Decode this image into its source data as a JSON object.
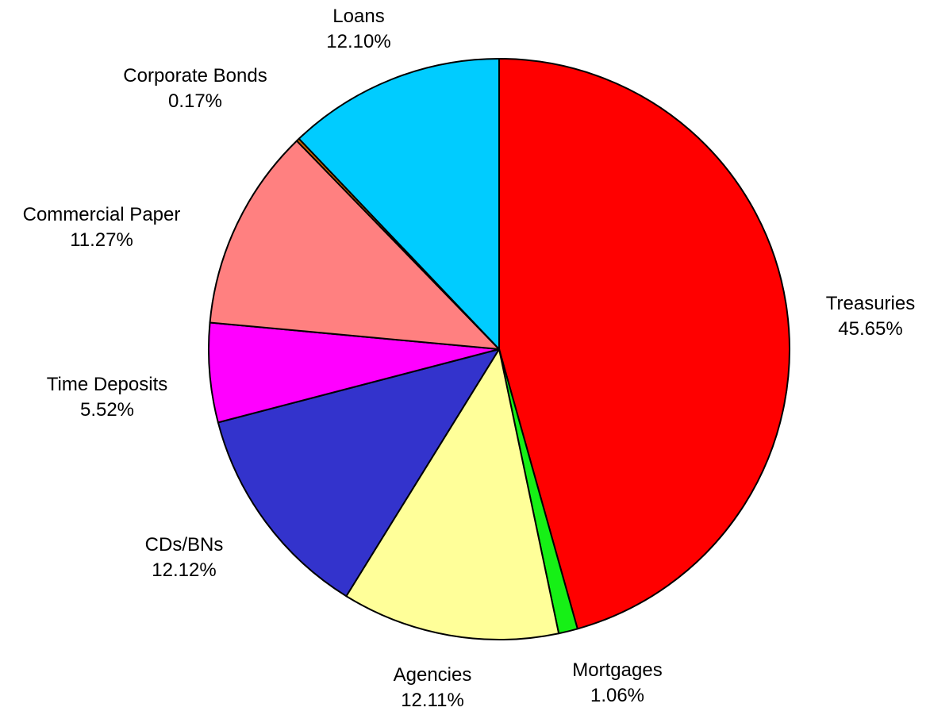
{
  "chart_data": {
    "type": "pie",
    "slices": [
      {
        "label": "Treasuries",
        "percent_label": "45.65%",
        "value": 45.65,
        "color": "#ff0000"
      },
      {
        "label": "Mortgages",
        "percent_label": "1.06%",
        "value": 1.06,
        "color": "#16f016"
      },
      {
        "label": "Agencies",
        "percent_label": "12.11%",
        "value": 12.11,
        "color": "#ffff99"
      },
      {
        "label": "CDs/BNs",
        "percent_label": "12.12%",
        "value": 12.12,
        "color": "#3333cc"
      },
      {
        "label": "Time Deposits",
        "percent_label": "5.52%",
        "value": 5.52,
        "color": "#ff00ff"
      },
      {
        "label": "Commercial Paper",
        "percent_label": "11.27%",
        "value": 11.27,
        "color": "#ff8080"
      },
      {
        "label": "Corporate Bonds",
        "percent_label": "0.17%",
        "value": 0.17,
        "color": "#cc6600"
      },
      {
        "label": "Loans",
        "percent_label": "12.10%",
        "value": 12.1,
        "color": "#00ccff"
      }
    ],
    "start_angle": "top",
    "direction": "clockwise"
  }
}
